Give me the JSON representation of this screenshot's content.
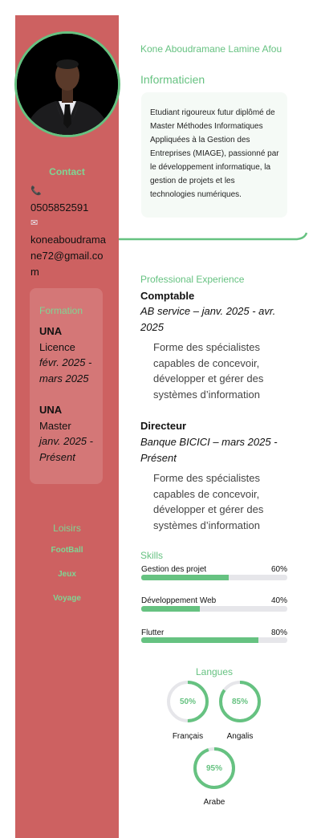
{
  "header": {
    "name": "Kone Aboudramane Lamine Afou",
    "job_title": "Informaticien",
    "profile": "Etudiant rigoureux futur diplômé de Master Méthodes Informatiques Appliquées à la Gestion des Entreprises (MIAGE), passionné par le développement informatique, la gestion de projets et les technologies numériques."
  },
  "sidebar": {
    "contact_title": "Contact",
    "phone": "0505852591",
    "email": "koneaboudramane72@gmail.com",
    "phone_icon": "📞",
    "mail_icon": "✉",
    "formation_title": "Formation",
    "formations": [
      {
        "school": "UNA",
        "degree": "Licence",
        "dates": "févr. 2025 - mars 2025"
      },
      {
        "school": "UNA",
        "degree": "Master",
        "dates": "janv. 2025 - Présent"
      }
    ],
    "loisirs_title": "Loisirs",
    "loisirs": [
      "FootBall",
      "Jeux",
      "Voyage"
    ]
  },
  "experience": {
    "title": "Professional Experience",
    "items": [
      {
        "role": "Comptable",
        "meta": "AB service – janv. 2025 - avr. 2025",
        "description": "Forme des spécialistes capables de concevoir, développer et gérer des systèmes d’information"
      },
      {
        "role": "Directeur",
        "meta": "Banque BICICI – mars 2025 - Présent",
        "description": "Forme des spécialistes capables de concevoir, développer et gérer des systèmes d’information"
      }
    ]
  },
  "skills": {
    "title": "Skills",
    "items": [
      {
        "name": "Gestion des projet",
        "label": "60%",
        "level": 0.6
      },
      {
        "name": "Développement Web",
        "label": "40%",
        "level": 0.4
      },
      {
        "name": "Flutter",
        "label": "80%",
        "level": 0.8
      }
    ]
  },
  "languages": {
    "title": "Langues",
    "items": [
      {
        "name": "Français",
        "label": "50%",
        "level": 0.5
      },
      {
        "name": "Angalis",
        "label": "85%",
        "level": 0.85
      },
      {
        "name": "Arabe",
        "label": "95%",
        "level": 0.95
      }
    ]
  },
  "colors": {
    "accent": "#66c281",
    "sidebar": "#cd6161",
    "track": "#e6e6ea"
  }
}
